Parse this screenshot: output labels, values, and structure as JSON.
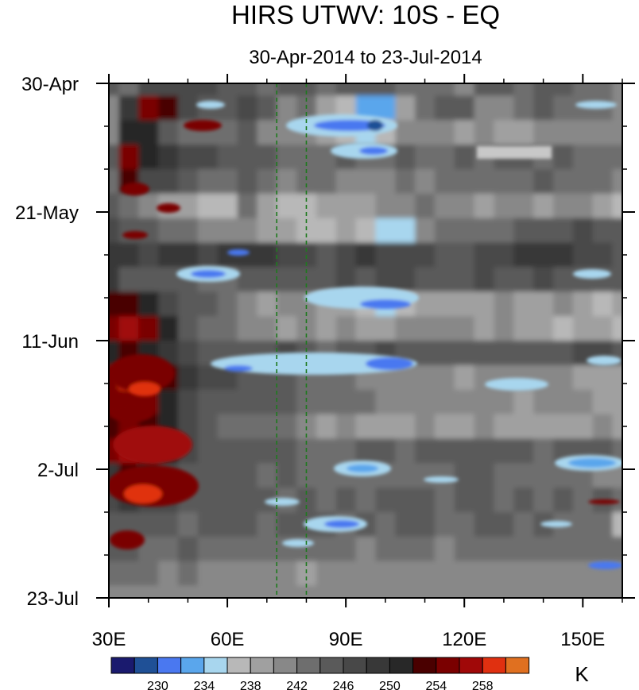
{
  "chart_data": {
    "type": "heatmap",
    "title": "HIRS UTWV: 10S - EQ",
    "subtitle": "30-Apr-2014 to 23-Jul-2014",
    "x_axis": {
      "range": [
        30,
        160
      ],
      "unit": "degrees east longitude",
      "ticks": [
        {
          "value": 30,
          "label": "30E"
        },
        {
          "value": 60,
          "label": "60E"
        },
        {
          "value": 90,
          "label": "90E"
        },
        {
          "value": 120,
          "label": "120E"
        },
        {
          "value": 150,
          "label": "150E"
        }
      ],
      "minor_step": 10
    },
    "y_axis": {
      "range": [
        0,
        84
      ],
      "unit": "days since 30-Apr-2014 (increasing downward)",
      "ticks": [
        {
          "value": 0,
          "label": "30-Apr"
        },
        {
          "value": 21,
          "label": "21-May"
        },
        {
          "value": 42,
          "label": "11-Jun"
        },
        {
          "value": 63,
          "label": "2-Jul"
        },
        {
          "value": 84,
          "label": "23-Jul"
        }
      ],
      "minor_step": 7
    },
    "reference_lines": [
      {
        "x": 72.5,
        "color": "#1e7a1e",
        "style": "dashed"
      },
      {
        "x": 80,
        "color": "#1e7a1e",
        "style": "dashed"
      }
    ],
    "colorbar": {
      "unit_label": "K",
      "level_labels": [
        {
          "after_box": 2,
          "label": "230"
        },
        {
          "after_box": 4,
          "label": "234"
        },
        {
          "after_box": 6,
          "label": "238"
        },
        {
          "after_box": 8,
          "label": "242"
        },
        {
          "after_box": 10,
          "label": "246"
        },
        {
          "after_box": 12,
          "label": "250"
        },
        {
          "after_box": 14,
          "label": "254"
        },
        {
          "after_box": 16,
          "label": "258"
        }
      ],
      "colors": [
        "#1a1a6e",
        "#1f5096",
        "#4a78f0",
        "#5aa6ec",
        "#a8d6ee",
        "#b8b8b8",
        "#a0a0a0",
        "#888888",
        "#6e6e6e",
        "#5a5a5a",
        "#484848",
        "#383838",
        "#282828",
        "#4a0000",
        "#7a0000",
        "#a00808",
        "#e03010",
        "#e07020"
      ]
    },
    "data_grid": {
      "description": "Approximate brightness temperature (K) read from the filled contours; rows = day index 0..84 every 4 days, columns = longitude 30..160 every 5 deg",
      "lon_start": 30,
      "lon_step": 5,
      "day_start": 0,
      "day_step": 4,
      "values": [
        [
          244,
          243,
          246,
          247,
          246,
          246,
          245,
          244,
          243,
          244,
          244,
          243,
          245,
          244,
          245,
          243,
          242,
          243,
          241,
          244,
          245,
          243,
          244,
          244,
          243,
          243,
          240
        ],
        [
          241,
          248,
          255,
          252,
          247,
          245,
          245,
          246,
          244,
          240,
          242,
          239,
          236,
          233,
          232,
          238,
          242,
          244,
          244,
          241,
          240,
          243,
          244,
          243,
          243,
          242,
          240
        ],
        [
          240,
          251,
          250,
          245,
          243,
          242,
          243,
          244,
          241,
          240,
          241,
          238,
          236,
          234,
          236,
          240,
          241,
          240,
          239,
          240,
          239,
          239,
          240,
          241,
          240,
          241,
          240
        ],
        [
          244,
          254,
          251,
          249,
          247,
          246,
          245,
          244,
          244,
          243,
          242,
          243,
          244,
          243,
          242,
          244,
          243,
          242,
          244,
          243,
          244,
          244,
          243,
          244,
          242,
          243,
          242
        ],
        [
          242,
          253,
          247,
          246,
          244,
          242,
          242,
          244,
          243,
          240,
          242,
          243,
          241,
          240,
          241,
          242,
          241,
          242,
          242,
          242,
          243,
          242,
          244,
          243,
          242,
          242,
          240
        ],
        [
          244,
          243,
          241,
          239,
          238,
          236,
          237,
          242,
          239,
          236,
          237,
          239,
          238,
          238,
          240,
          241,
          242,
          240,
          241,
          239,
          240,
          240,
          239,
          240,
          240,
          238,
          237
        ],
        [
          246,
          245,
          244,
          242,
          242,
          241,
          241,
          240,
          238,
          239,
          236,
          237,
          238,
          236,
          234,
          235,
          240,
          242,
          242,
          242,
          243,
          244,
          244,
          245,
          246,
          245,
          244
        ],
        [
          248,
          248,
          247,
          248,
          248,
          246,
          248,
          249,
          248,
          247,
          246,
          245,
          246,
          248,
          247,
          246,
          246,
          245,
          244,
          246,
          247,
          248,
          248,
          248,
          246,
          246,
          245
        ],
        [
          248,
          245,
          244,
          245,
          244,
          242,
          243,
          244,
          244,
          245,
          244,
          245,
          246,
          245,
          246,
          246,
          245,
          244,
          245,
          246,
          245,
          245,
          246,
          245,
          245,
          244,
          244
        ],
        [
          252,
          253,
          250,
          247,
          244,
          244,
          242,
          240,
          238,
          240,
          240,
          238,
          238,
          236,
          235,
          237,
          238,
          238,
          239,
          238,
          240,
          239,
          239,
          240,
          238,
          237,
          238
        ],
        [
          254,
          256,
          254,
          250,
          244,
          242,
          242,
          241,
          240,
          239,
          240,
          239,
          240,
          238,
          239,
          240,
          240,
          240,
          241,
          239,
          240,
          239,
          238,
          237,
          239,
          238,
          237
        ],
        [
          250,
          252,
          250,
          248,
          246,
          244,
          244,
          244,
          245,
          246,
          244,
          243,
          244,
          245,
          246,
          245,
          245,
          244,
          244,
          245,
          244,
          244,
          245,
          244,
          246,
          246,
          245
        ],
        [
          255,
          258,
          255,
          252,
          248,
          246,
          246,
          244,
          245,
          244,
          243,
          242,
          243,
          241,
          240,
          241,
          240,
          240,
          239,
          240,
          241,
          240,
          240,
          240,
          239,
          238,
          238
        ],
        [
          254,
          255,
          254,
          251,
          247,
          244,
          244,
          244,
          244,
          244,
          243,
          243,
          242,
          242,
          241,
          240,
          241,
          240,
          240,
          241,
          240,
          238,
          240,
          240,
          240,
          238,
          238
        ],
        [
          252,
          255,
          253,
          250,
          246,
          244,
          243,
          242,
          242,
          242,
          240,
          239,
          240,
          238,
          239,
          239,
          240,
          238,
          239,
          240,
          239,
          238,
          239,
          238,
          239,
          240,
          239
        ],
        [
          254,
          256,
          254,
          250,
          246,
          244,
          244,
          245,
          244,
          244,
          243,
          242,
          243,
          244,
          244,
          243,
          244,
          244,
          244,
          245,
          244,
          244,
          243,
          245,
          244,
          244,
          243
        ],
        [
          249,
          252,
          250,
          247,
          245,
          244,
          244,
          244,
          243,
          244,
          243,
          242,
          243,
          242,
          242,
          242,
          242,
          243,
          244,
          244,
          243,
          242,
          243,
          243,
          242,
          240,
          240
        ],
        [
          247,
          248,
          247,
          246,
          245,
          244,
          244,
          245,
          244,
          243,
          244,
          243,
          244,
          243,
          244,
          244,
          244,
          243,
          244,
          244,
          243,
          244,
          243,
          244,
          243,
          244,
          243
        ],
        [
          245,
          244,
          244,
          244,
          243,
          244,
          244,
          244,
          243,
          244,
          244,
          244,
          243,
          244,
          243,
          244,
          244,
          243,
          243,
          244,
          244,
          243,
          244,
          243,
          243,
          242,
          236
        ],
        [
          244,
          244,
          243,
          242,
          244,
          243,
          242,
          243,
          242,
          242,
          242,
          243,
          242,
          241,
          242,
          242,
          242,
          241,
          242,
          243,
          242,
          242,
          242,
          242,
          242,
          243,
          242
        ],
        [
          242,
          243,
          242,
          241,
          242,
          241,
          240,
          241,
          240,
          240,
          239,
          240,
          241,
          240,
          241,
          240,
          240,
          240,
          240,
          241,
          240,
          240,
          240,
          241,
          240,
          240,
          240
        ],
        [
          240,
          240,
          240,
          240,
          240,
          240,
          240,
          240,
          240,
          240,
          240,
          240,
          240,
          240,
          240,
          240,
          240,
          240,
          240,
          240,
          240,
          240,
          240,
          240,
          240,
          240,
          240
        ]
      ]
    }
  }
}
